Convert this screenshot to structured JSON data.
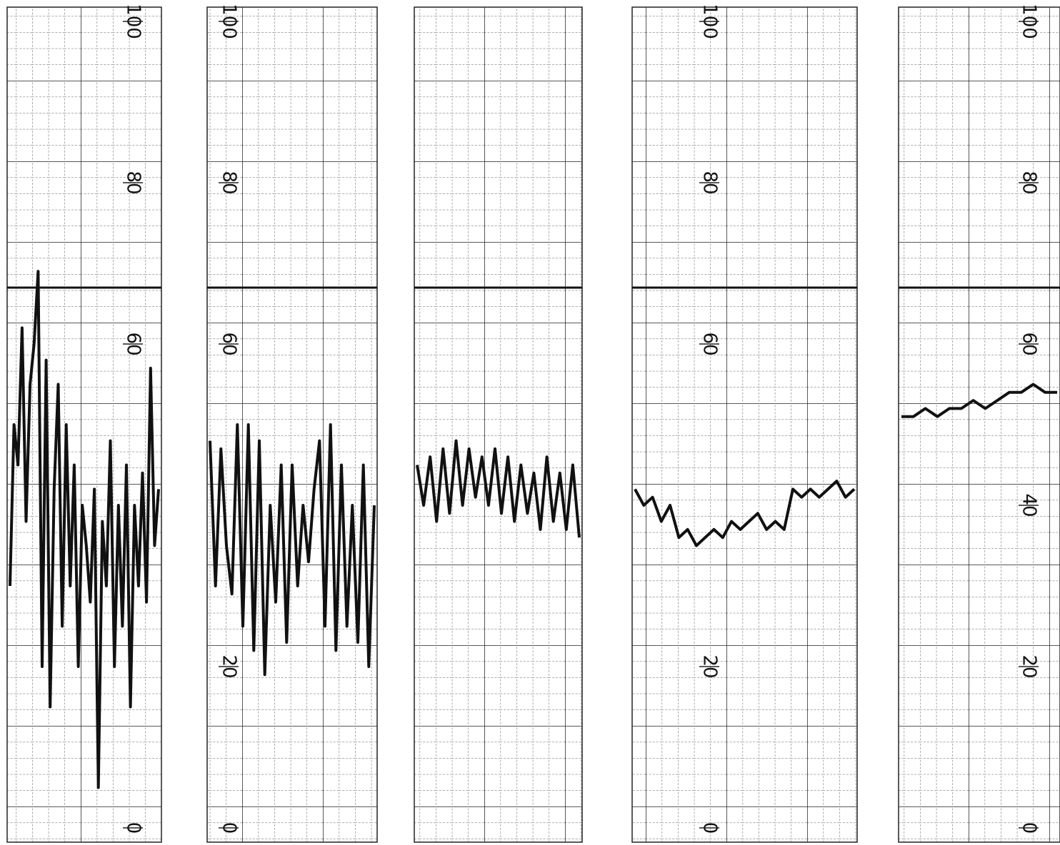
{
  "chart_data": [
    {
      "type": "line",
      "ylim": [
        0,
        100
      ],
      "yticks": [
        0,
        60,
        80,
        100
      ],
      "color": "#111111",
      "values": [
        30,
        50,
        45,
        62,
        38,
        55,
        60,
        69,
        20,
        58,
        15,
        42,
        55,
        25,
        50,
        30,
        45,
        20,
        40,
        35,
        28,
        42,
        5,
        38,
        30,
        48,
        20,
        40,
        25,
        45,
        15,
        40,
        30,
        44,
        28,
        57,
        35,
        42
      ]
    },
    {
      "type": "line",
      "ylim": [
        0,
        100
      ],
      "yticks": [
        0,
        20,
        60,
        80,
        100
      ],
      "color": "#111111",
      "values": [
        48,
        30,
        47,
        35,
        29,
        50,
        25,
        50,
        22,
        48,
        19,
        40,
        28,
        45,
        23,
        45,
        30,
        40,
        33,
        42,
        48,
        25,
        50,
        22,
        45,
        25,
        40,
        23,
        45,
        20,
        40
      ]
    },
    {
      "type": "line",
      "ylim": [
        0,
        100
      ],
      "yticks": [],
      "color": "#111111",
      "values": [
        45,
        40,
        46,
        38,
        47,
        39,
        48,
        40,
        47,
        41,
        46,
        40,
        47,
        39,
        46,
        38,
        45,
        39,
        44,
        37,
        46,
        38,
        44,
        37,
        45,
        36
      ]
    },
    {
      "type": "line",
      "ylim": [
        0,
        100
      ],
      "yticks": [
        0,
        20,
        60,
        80,
        100
      ],
      "color": "#111111",
      "values": [
        42,
        40,
        41,
        38,
        40,
        36,
        37,
        35,
        36,
        37,
        36,
        38,
        37,
        38,
        39,
        37,
        38,
        37,
        42,
        41,
        42,
        41,
        42,
        43,
        41,
        42
      ]
    },
    {
      "type": "line",
      "ylim": [
        0,
        100
      ],
      "yticks": [
        0,
        20,
        40,
        60,
        80,
        100
      ],
      "color": "#111111",
      "values": [
        51,
        51,
        52,
        51,
        52,
        52,
        53,
        52,
        53,
        54,
        54,
        55,
        54,
        54
      ]
    }
  ]
}
